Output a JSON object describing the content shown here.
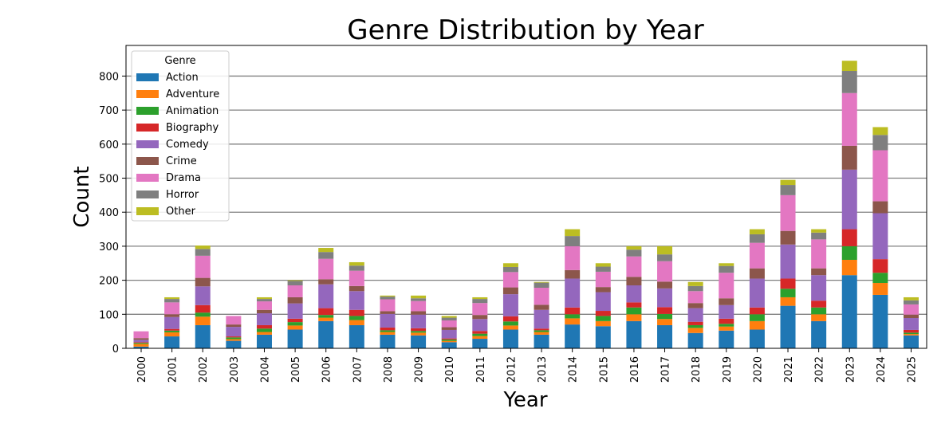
{
  "chart_data": {
    "type": "bar",
    "stacked": true,
    "title": "Genre Distribution by Year",
    "xlabel": "Year",
    "ylabel": "Count",
    "ylim": [
      0,
      890
    ],
    "yticks": [
      0,
      100,
      200,
      300,
      400,
      500,
      600,
      700,
      800
    ],
    "grid": "horizontal",
    "legend": {
      "title": "Genre",
      "placement": "top-left"
    },
    "categories": [
      "2000",
      "2001",
      "2002",
      "2003",
      "2004",
      "2005",
      "2006",
      "2007",
      "2008",
      "2009",
      "2010",
      "2011",
      "2012",
      "2013",
      "2014",
      "2015",
      "2016",
      "2017",
      "2018",
      "2019",
      "2020",
      "2021",
      "2022",
      "2023",
      "2024",
      "2025"
    ],
    "series": [
      {
        "name": "Action",
        "color": "#1f77b4",
        "values": [
          5,
          35,
          68,
          22,
          40,
          55,
          80,
          68,
          40,
          38,
          18,
          28,
          55,
          40,
          70,
          65,
          80,
          68,
          45,
          52,
          55,
          125,
          80,
          215,
          157,
          38
        ]
      },
      {
        "name": "Adventure",
        "color": "#ff7f0e",
        "values": [
          8,
          12,
          25,
          5,
          8,
          12,
          10,
          15,
          8,
          8,
          4,
          8,
          12,
          8,
          18,
          15,
          20,
          18,
          15,
          12,
          25,
          25,
          20,
          45,
          35,
          4
        ]
      },
      {
        "name": "Animation",
        "color": "#2ca02c",
        "values": [
          3,
          5,
          12,
          5,
          10,
          10,
          8,
          12,
          5,
          5,
          4,
          7,
          12,
          5,
          12,
          15,
          20,
          15,
          8,
          8,
          20,
          25,
          20,
          40,
          30,
          4
        ]
      },
      {
        "name": "Biography",
        "color": "#d62728",
        "values": [
          2,
          5,
          22,
          3,
          10,
          10,
          20,
          18,
          8,
          8,
          3,
          8,
          15,
          5,
          20,
          15,
          15,
          20,
          10,
          15,
          20,
          30,
          20,
          50,
          40,
          8
        ]
      },
      {
        "name": "Comedy",
        "color": "#9467bd",
        "values": [
          7,
          35,
          55,
          28,
          35,
          45,
          70,
          55,
          40,
          40,
          25,
          35,
          65,
          55,
          85,
          55,
          50,
          55,
          40,
          40,
          85,
          100,
          75,
          175,
          135,
          35
        ]
      },
      {
        "name": "Crime",
        "color": "#8c564b",
        "values": [
          5,
          8,
          25,
          7,
          10,
          18,
          15,
          15,
          8,
          10,
          8,
          12,
          20,
          15,
          25,
          15,
          25,
          20,
          15,
          20,
          30,
          40,
          20,
          70,
          35,
          10
        ]
      },
      {
        "name": "Drama",
        "color": "#e377c2",
        "values": [
          20,
          35,
          65,
          25,
          25,
          35,
          60,
          45,
          35,
          30,
          20,
          35,
          45,
          50,
          70,
          45,
          60,
          60,
          35,
          75,
          75,
          105,
          85,
          155,
          150,
          30
        ]
      },
      {
        "name": "Horror",
        "color": "#7f7f7f",
        "values": [
          0,
          10,
          20,
          0,
          7,
          13,
          20,
          15,
          8,
          8,
          8,
          12,
          15,
          15,
          30,
          15,
          20,
          20,
          15,
          20,
          25,
          30,
          20,
          65,
          45,
          12
        ]
      },
      {
        "name": "Other",
        "color": "#bcbd22",
        "values": [
          0,
          5,
          10,
          0,
          5,
          2,
          12,
          10,
          3,
          8,
          5,
          5,
          11,
          2,
          20,
          10,
          10,
          24,
          12,
          8,
          15,
          15,
          10,
          30,
          23,
          9
        ]
      }
    ]
  }
}
